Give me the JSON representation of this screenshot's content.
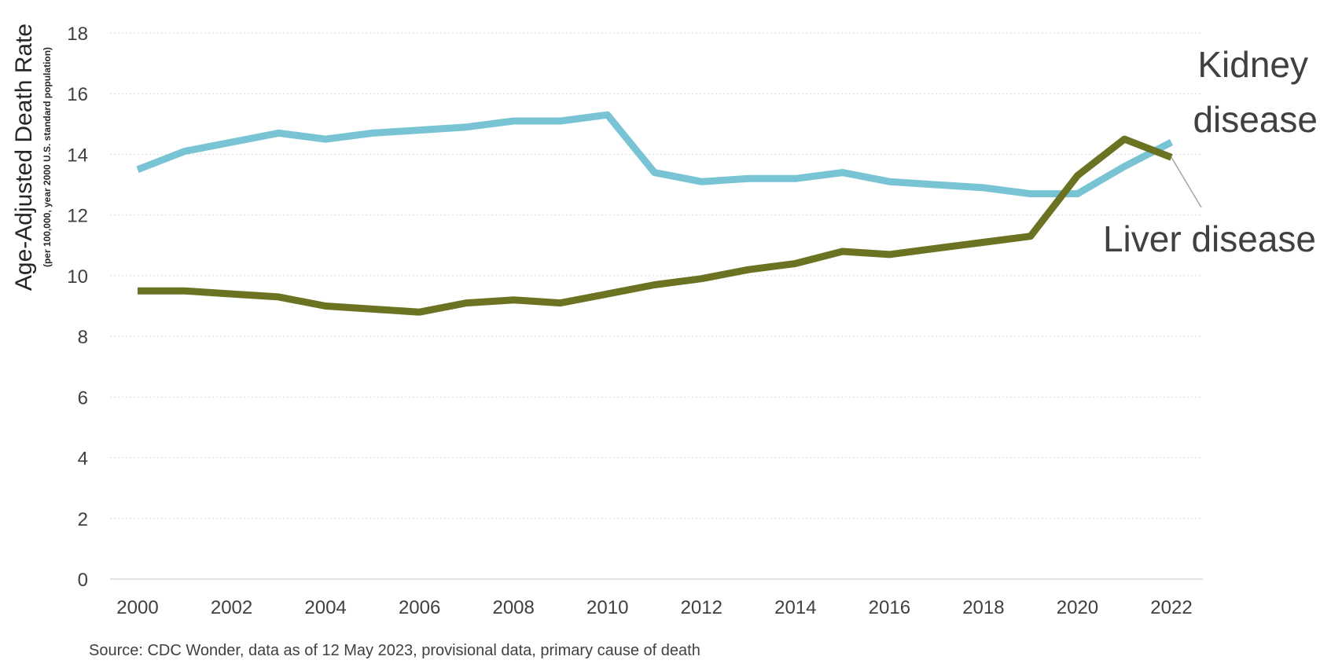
{
  "chart_data": {
    "type": "line",
    "x": [
      2000,
      2001,
      2002,
      2003,
      2004,
      2005,
      2006,
      2007,
      2008,
      2009,
      2010,
      2011,
      2012,
      2013,
      2014,
      2015,
      2016,
      2017,
      2018,
      2019,
      2020,
      2021,
      2022
    ],
    "x_ticks": [
      "2000",
      "2002",
      "2004",
      "2006",
      "2008",
      "2010",
      "2012",
      "2014",
      "2016",
      "2018",
      "2020",
      "2022"
    ],
    "y_ticks": [
      "0",
      "2",
      "4",
      "6",
      "8",
      "10",
      "12",
      "14",
      "16",
      "18"
    ],
    "ylim": [
      0,
      18
    ],
    "xlim": [
      2000,
      2022
    ],
    "ylabel": "Age-Adjusted Death Rate",
    "ylabel_sub": "(per 100,000, year 2000 U.S. standard population)",
    "grid": "horizontal dotted",
    "series": [
      {
        "name": "Kidney disease",
        "label_lines": [
          "Kidney",
          "disease"
        ],
        "color": "#78c4d4",
        "values": [
          13.5,
          14.1,
          14.4,
          14.7,
          14.5,
          14.7,
          14.8,
          14.9,
          15.1,
          15.1,
          15.3,
          13.4,
          13.1,
          13.2,
          13.2,
          13.4,
          13.1,
          13.0,
          12.9,
          12.7,
          12.7,
          13.6,
          14.4
        ]
      },
      {
        "name": "Liver disease",
        "label_lines": [
          "Liver disease"
        ],
        "color": "#6b7322",
        "values": [
          9.5,
          9.5,
          9.4,
          9.3,
          9.0,
          8.9,
          8.8,
          9.1,
          9.2,
          9.1,
          9.4,
          9.7,
          9.9,
          10.2,
          10.4,
          10.8,
          10.7,
          10.9,
          11.1,
          11.3,
          13.3,
          14.5,
          13.9
        ]
      }
    ],
    "source": "Source: CDC Wonder, data as of 12 May 2023, provisional data, primary cause of death"
  }
}
